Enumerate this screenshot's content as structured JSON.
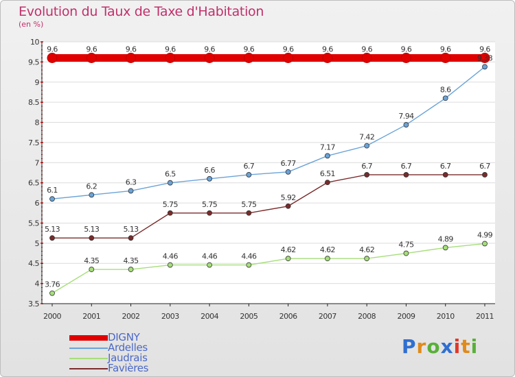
{
  "title": "Evolution du Taux de Taxe d'Habitation",
  "unit_label": "(en %)",
  "chart_data": {
    "type": "line",
    "title": "Evolution du Taux de Taxe d'Habitation",
    "ylabel": "(en %)",
    "xlabel": "",
    "ylim": [
      3.5,
      10
    ],
    "x": [
      "2000",
      "2001",
      "2002",
      "2003",
      "2004",
      "2005",
      "2006",
      "2007",
      "2008",
      "2009",
      "2010",
      "2011"
    ],
    "y_ticks": [
      "3.5",
      "4",
      "4.5",
      "5",
      "5.5",
      "6",
      "6.5",
      "7",
      "7.5",
      "8",
      "8.5",
      "9",
      "9.5",
      "10"
    ],
    "grid": "horizontal",
    "legend_position": "bottom-left",
    "series": [
      {
        "name": "DIGNY",
        "color": "#e00000",
        "values": [
          9.6,
          9.6,
          9.6,
          9.6,
          9.6,
          9.6,
          9.6,
          9.6,
          9.6,
          9.6,
          9.6,
          9.6
        ],
        "labels": [
          "9.6",
          "9.6",
          "9.6",
          "9.6",
          "9.6",
          "9.6",
          "9.6",
          "9.6",
          "9.6",
          "9.6",
          "9.6",
          "9.6"
        ]
      },
      {
        "name": "Ardelles",
        "color": "#6aa3d8",
        "values": [
          6.1,
          6.2,
          6.3,
          6.5,
          6.6,
          6.7,
          6.77,
          7.17,
          7.42,
          7.94,
          8.6,
          9.38
        ],
        "labels": [
          "6.1",
          "6.2",
          "6.3",
          "6.5",
          "6.6",
          "6.7",
          "6.77",
          "7.17",
          "7.42",
          "7.94",
          "8.6",
          "9.38"
        ]
      },
      {
        "name": "Jaudrais",
        "color": "#a6de7a",
        "values": [
          3.76,
          4.35,
          4.35,
          4.46,
          4.46,
          4.46,
          4.62,
          4.62,
          4.62,
          4.75,
          4.89,
          4.99
        ],
        "labels": [
          "3.76",
          "4.35",
          "4.35",
          "4.46",
          "4.46",
          "4.46",
          "4.62",
          "4.62",
          "4.62",
          "4.75",
          "4.89",
          "4.99"
        ]
      },
      {
        "name": "Favières",
        "color": "#7a2a2a",
        "values": [
          5.13,
          5.13,
          5.13,
          5.75,
          5.75,
          5.75,
          5.92,
          6.51,
          6.7,
          6.7,
          6.7,
          6.7
        ],
        "labels": [
          "5.13",
          "5.13",
          "5.13",
          "5.75",
          "5.75",
          "5.75",
          "5.92",
          "6.51",
          "6.7",
          "6.7",
          "6.7",
          "6.7"
        ]
      }
    ]
  },
  "logo": {
    "letters": [
      "P",
      "r",
      "o",
      "x",
      "i",
      "t",
      "i"
    ],
    "colors": [
      "#2f6fd0",
      "#e08a1a",
      "#58b038",
      "#2f6fd0",
      "#e0382a",
      "#e08a1a",
      "#58b038"
    ]
  }
}
